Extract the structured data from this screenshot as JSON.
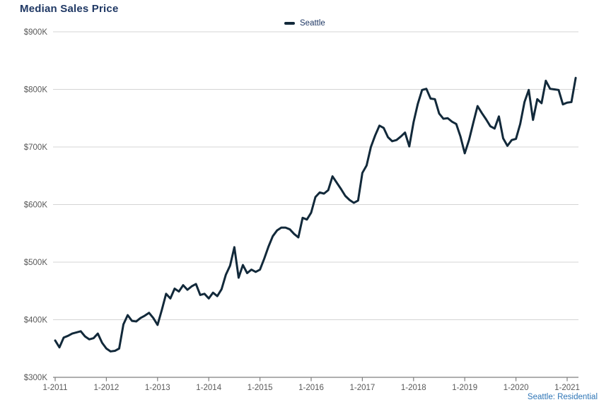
{
  "header": {
    "title": "Median Sales Price"
  },
  "legend": {
    "label": "Seattle"
  },
  "footer": {
    "source": "Seattle: Residential"
  },
  "colors": {
    "line": "#12293a",
    "title_text": "#1f3864",
    "legend_text": "#1f3864",
    "source_text": "#2e75b6",
    "grid": "#d4d4d4",
    "axis": "#7f7f7f",
    "tick_text": "#595959",
    "background": "#ffffff"
  },
  "chart_data": {
    "type": "line",
    "title": "Median Sales Price",
    "legend_position": "top-center",
    "grid": "horizontal",
    "unit": "USD thousands",
    "frequency": "monthly",
    "start_month": "1-2011",
    "end_month": "3-2021",
    "y_axis": {
      "min": 300,
      "max": 900,
      "tick_step": 100,
      "ticks": [
        "$300K",
        "$400K",
        "$500K",
        "$600K",
        "$700K",
        "$800K",
        "$900K"
      ]
    },
    "x_axis": {
      "ticks": [
        "1-2011",
        "1-2012",
        "1-2013",
        "1-2014",
        "1-2015",
        "1-2016",
        "1-2017",
        "1-2018",
        "1-2019",
        "1-2020",
        "1-2021"
      ],
      "months_per_tick": 12
    },
    "series": [
      {
        "name": "Seattle",
        "values": [
          364,
          352,
          369,
          372,
          376,
          378,
          380,
          371,
          366,
          368,
          376,
          360,
          350,
          345,
          346,
          350,
          392,
          408,
          398,
          397,
          403,
          407,
          412,
          403,
          391,
          417,
          445,
          437,
          454,
          449,
          460,
          452,
          458,
          462,
          443,
          445,
          437,
          447,
          441,
          453,
          478,
          494,
          526,
          473,
          495,
          481,
          487,
          483,
          487,
          506,
          527,
          545,
          555,
          560,
          560,
          557,
          549,
          543,
          577,
          574,
          586,
          613,
          621,
          619,
          625,
          649,
          638,
          627,
          615,
          608,
          603,
          607,
          655,
          668,
          700,
          720,
          737,
          733,
          717,
          710,
          712,
          718,
          725,
          701,
          743,
          775,
          799,
          801,
          784,
          783,
          758,
          749,
          750,
          744,
          740,
          718,
          689,
          712,
          742,
          771,
          759,
          748,
          736,
          732,
          753,
          715,
          702,
          712,
          714,
          740,
          778,
          799,
          747,
          783,
          776,
          815,
          801,
          800,
          799,
          774,
          777,
          778,
          820
        ]
      }
    ]
  }
}
